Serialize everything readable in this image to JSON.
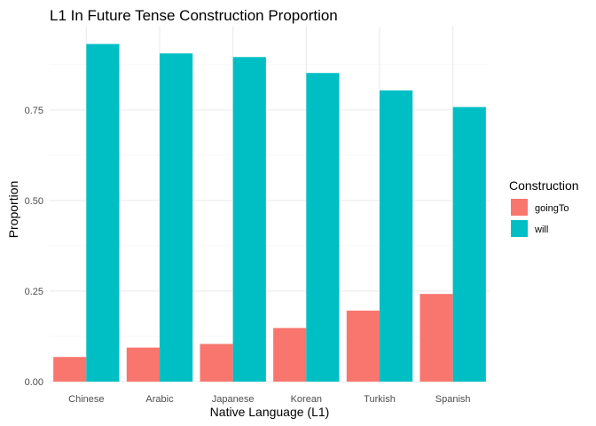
{
  "chart_data": {
    "type": "bar",
    "title": "L1 In Future Tense Construction Proportion",
    "xlabel": "Native Language (L1)",
    "ylabel": "Proportion",
    "categories": [
      "Chinese",
      "Arabic",
      "Japanese",
      "Korean",
      "Turkish",
      "Spanish"
    ],
    "series": [
      {
        "name": "goingTo",
        "color": "#F8766D",
        "values": [
          0.068,
          0.094,
          0.104,
          0.148,
          0.196,
          0.242
        ]
      },
      {
        "name": "will",
        "color": "#00BFC4",
        "values": [
          0.932,
          0.906,
          0.896,
          0.852,
          0.804,
          0.758
        ]
      }
    ],
    "ylim": [
      0,
      0.98
    ],
    "yticks": [
      0,
      0.25,
      0.5,
      0.75
    ],
    "ytick_labels": [
      "0.00",
      "0.25",
      "0.50",
      "0.75"
    ],
    "grid": true,
    "legend": {
      "title": "Construction",
      "position": "right"
    }
  }
}
